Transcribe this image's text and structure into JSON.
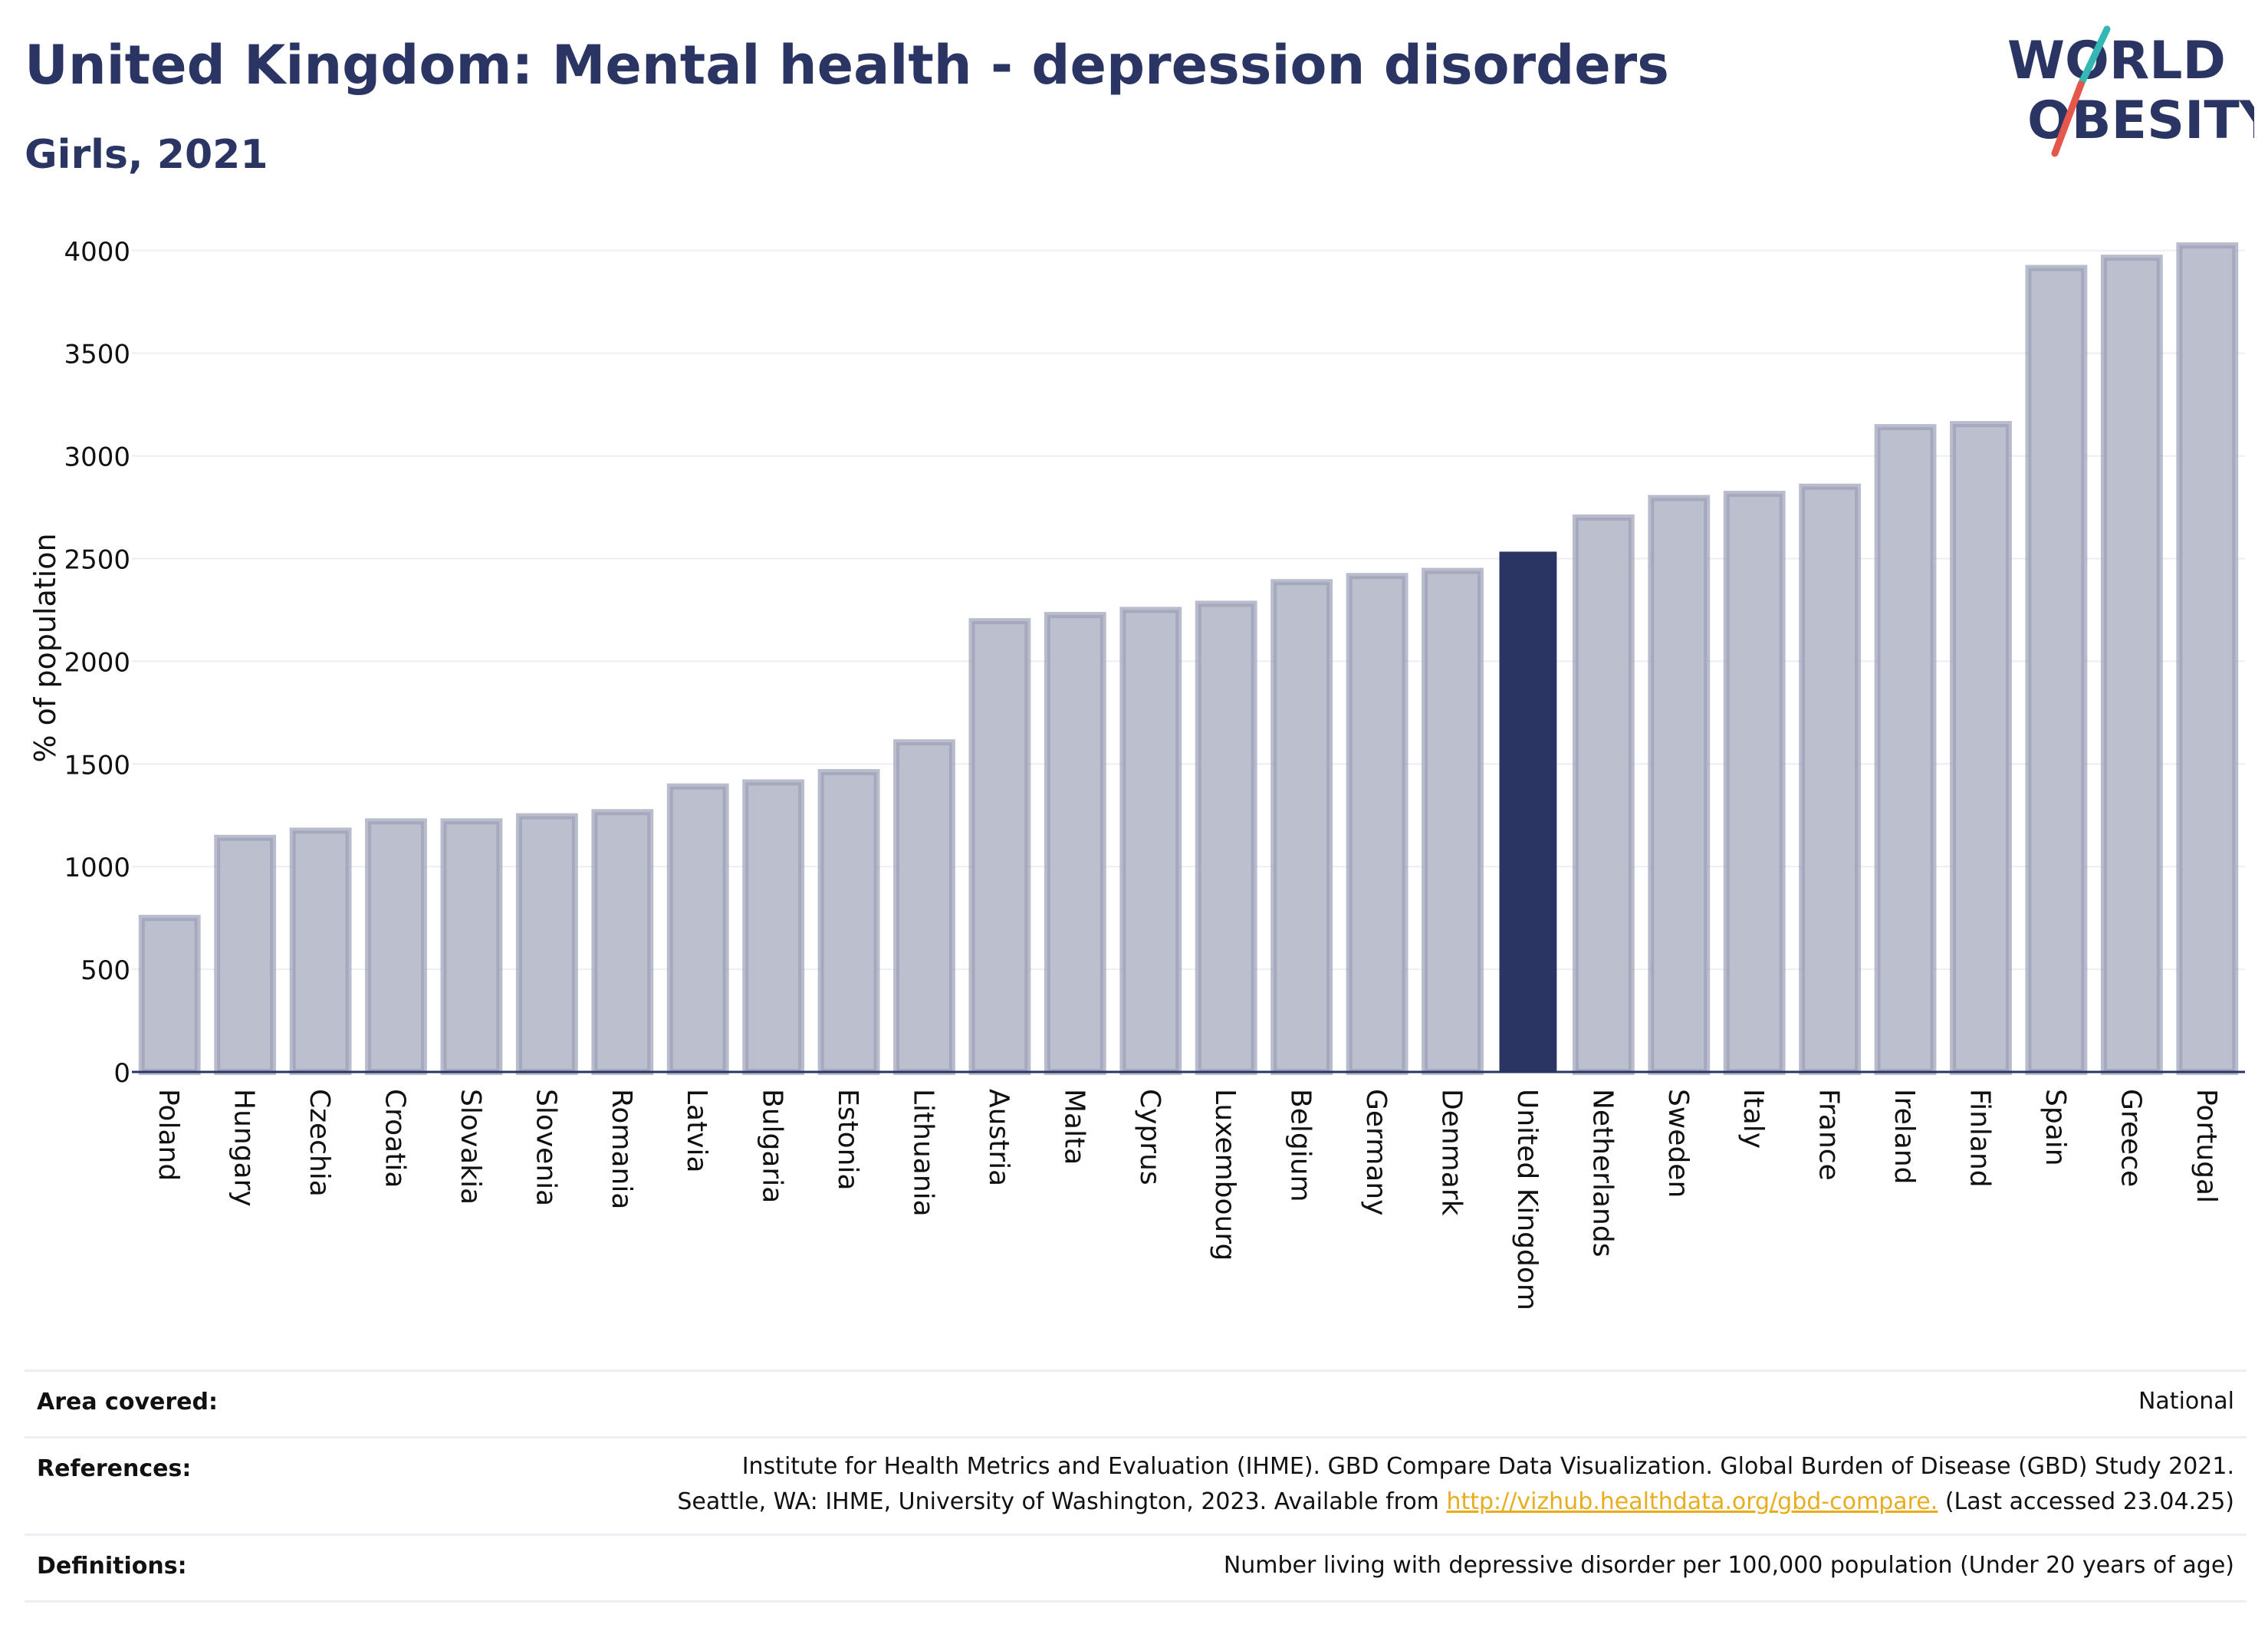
{
  "title": "United Kingdom: Mental health - depression disorders",
  "subtitle": "Girls, 2021",
  "logo": {
    "line1": "WORLD",
    "line2": "OBESITY",
    "accent_teal": "#35b8b5",
    "accent_red": "#e5574a"
  },
  "colors": {
    "bar": "#bcc0ce",
    "bar_stroke": "#9aa0b8",
    "highlight": "#2a3563",
    "grid": "#eceef4",
    "text": "#2a3563"
  },
  "chart_data": {
    "type": "bar",
    "ylabel": "% of population",
    "ylim": [
      0,
      4100
    ],
    "yticks": [
      0,
      500,
      1000,
      1500,
      2000,
      2500,
      3000,
      3500,
      4000
    ],
    "highlight": "United Kingdom",
    "categories": [
      "Poland",
      "Hungary",
      "Czechia",
      "Croatia",
      "Slovakia",
      "Slovenia",
      "Romania",
      "Latvia",
      "Bulgaria",
      "Estonia",
      "Lithuania",
      "Austria",
      "Malta",
      "Cyprus",
      "Luxembourg",
      "Belgium",
      "Germany",
      "Denmark",
      "United Kingdom",
      "Netherlands",
      "Sweden",
      "Italy",
      "France",
      "Ireland",
      "Finland",
      "Spain",
      "Greece",
      "Portugal"
    ],
    "values": [
      750,
      1140,
      1175,
      1220,
      1220,
      1245,
      1265,
      1390,
      1410,
      1460,
      1605,
      2195,
      2225,
      2250,
      2280,
      2385,
      2415,
      2440,
      2530,
      2700,
      2795,
      2815,
      2850,
      3140,
      3155,
      3915,
      3965,
      4025
    ]
  },
  "info": {
    "area_label": "Area covered:",
    "area_value": "National",
    "references_label": "References:",
    "references_line1": "Institute for Health Metrics and Evaluation (IHME). GBD Compare Data Visualization. Global Burden of Disease (GBD) Study 2021.",
    "references_line2_pre": "Seattle, WA: IHME, University of Washington, 2023. Available from ",
    "references_link": "http://vizhub.healthdata.org/gbd-compare.",
    "references_line2_post": " (Last accessed 23.04.25)",
    "definitions_label": "Definitions:",
    "definitions_value": "Number living with depressive disorder per 100,000 population (Under 20 years of age)"
  }
}
